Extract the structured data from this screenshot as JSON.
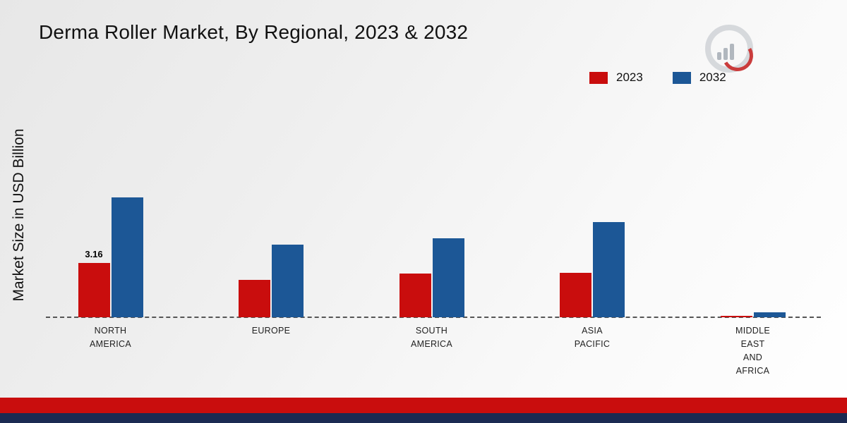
{
  "title": "Derma Roller Market, By Regional, 2023 & 2032",
  "y_axis_label": "Market Size in USD Billion",
  "colors": {
    "series_2023": "#c90d0d",
    "series_2032": "#1c5796",
    "footer_red": "#c90d0d",
    "footer_navy": "#1b2a52"
  },
  "chart_data": {
    "type": "bar",
    "categories": [
      "NORTH AMERICA",
      "EUROPE",
      "SOUTH AMERICA",
      "ASIA PACIFIC",
      "MIDDLE EAST AND AFRICA"
    ],
    "category_lines": [
      [
        "NORTH",
        "AMERICA"
      ],
      [
        "EUROPE"
      ],
      [
        "SOUTH",
        "AMERICA"
      ],
      [
        "ASIA",
        "PACIFIC"
      ],
      [
        "MIDDLE",
        "EAST",
        "AND",
        "AFRICA"
      ]
    ],
    "series": [
      {
        "name": "2023",
        "color": "#c90d0d",
        "values": [
          3.16,
          2.2,
          2.55,
          2.6,
          0.08
        ]
      },
      {
        "name": "2032",
        "color": "#1c5796",
        "values": [
          7.0,
          4.25,
          4.6,
          5.55,
          0.3
        ]
      }
    ],
    "title": "Derma Roller Market, By Regional, 2023 & 2032",
    "xlabel": "",
    "ylabel": "Market Size in USD Billion",
    "ylim": [
      0,
      7.5
    ],
    "grid": false,
    "legend_position": "top-right",
    "annotations": [
      {
        "series": "2023",
        "category": "NORTH AMERICA",
        "text": "3.16"
      }
    ]
  }
}
